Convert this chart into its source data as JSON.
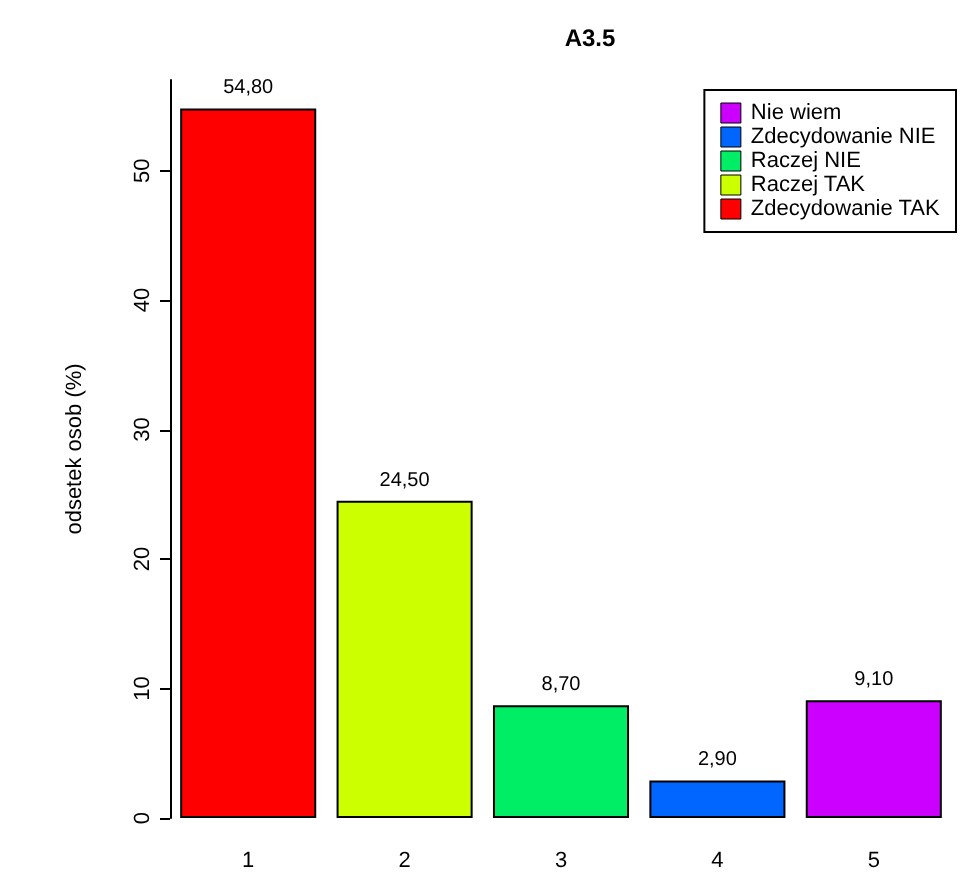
{
  "chart_data": {
    "type": "bar",
    "title": "A3.5",
    "ylabel": "odsetek osob (%)",
    "categories": [
      "1",
      "2",
      "3",
      "4",
      "5"
    ],
    "series": [
      {
        "name": "Nie wiem",
        "color": "#cc00ff",
        "values": [
          null,
          null,
          null,
          null,
          9.1
        ],
        "value_labels": [
          null,
          null,
          null,
          null,
          "9,10"
        ]
      },
      {
        "name": "Zdecydowanie NIE",
        "color": "#0066ff",
        "values": [
          null,
          null,
          null,
          2.9,
          null
        ],
        "value_labels": [
          null,
          null,
          null,
          "2,90",
          null
        ]
      },
      {
        "name": "Raczej NIE",
        "color": "#00ee66",
        "values": [
          null,
          null,
          8.7,
          null,
          null
        ],
        "value_labels": [
          null,
          null,
          "8,70",
          null,
          null
        ]
      },
      {
        "name": "Raczej TAK",
        "color": "#ccff00",
        "values": [
          null,
          24.5,
          null,
          null,
          null
        ],
        "value_labels": [
          null,
          "24,50",
          null,
          null,
          null
        ]
      },
      {
        "name": "Zdecydowanie TAK",
        "color": "#ff0000",
        "values": [
          54.8,
          null,
          null,
          null,
          null
        ],
        "value_labels": [
          "54,80",
          null,
          null,
          null,
          null
        ]
      }
    ],
    "stacked": true,
    "ylim": [
      0,
      57
    ],
    "yticks": [
      0,
      10,
      20,
      30,
      40,
      50
    ],
    "grid": false,
    "legend": "top right"
  }
}
